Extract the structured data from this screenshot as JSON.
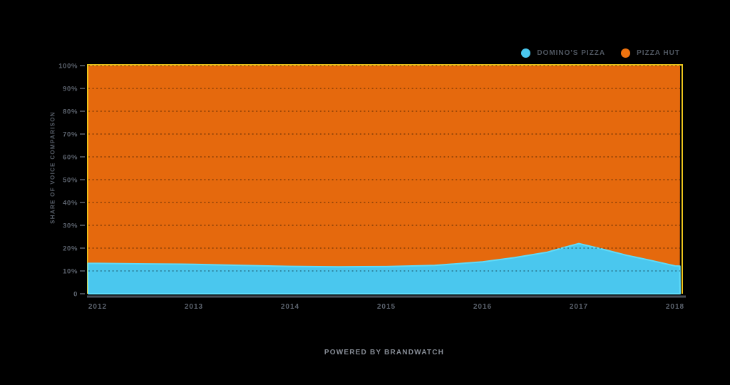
{
  "page": {
    "background_color": "#000000"
  },
  "legend": {
    "position": "top-right",
    "items": [
      {
        "label": "DOMINO'S PIZZA",
        "color": "#4AC7EE"
      },
      {
        "label": "PIZZA HUT",
        "color": "#EE730F"
      }
    ]
  },
  "y_axis": {
    "title": "SHARE OF VOICE COMPARISON",
    "ticks": [
      "100%",
      "90%",
      "80%",
      "70%",
      "60%",
      "50%",
      "40%",
      "30%",
      "20%",
      "10%",
      "0"
    ]
  },
  "x_axis": {
    "ticks": [
      "2012",
      "2013",
      "2014",
      "2015",
      "2016",
      "2017",
      "2018"
    ]
  },
  "footer": {
    "text": "POWERED BY BRANDWATCH"
  },
  "chart_data": {
    "type": "area",
    "stacked": true,
    "unit": "percent",
    "title": "",
    "ylabel": "SHARE OF VOICE COMPARISON",
    "ylim": [
      0,
      100
    ],
    "grid": "dotted horizontal lines every 10%",
    "legend_position": "top-right",
    "x_domain": [
      2011.904,
      2018.052
    ],
    "x_tick_years": [
      2012,
      2013,
      2014,
      2015,
      2016,
      2017,
      2018
    ],
    "x": [
      2011.9,
      2012,
      2012.5,
      2013,
      2013.5,
      2014,
      2014.5,
      2015,
      2015.5,
      2016,
      2016.33,
      2016.67,
      2016.85,
      2017,
      2017.25,
      2017.5,
      2017.75,
      2018,
      2018.05
    ],
    "series": [
      {
        "name": "DOMINO'S PIZZA",
        "color": "#4AC7EE",
        "edge_color": "#5EDCFB",
        "values": [
          13.3,
          13.3,
          13.1,
          12.9,
          12.4,
          12.0,
          11.8,
          11.9,
          12.4,
          14.0,
          15.8,
          18.2,
          20.3,
          22.0,
          19.5,
          16.8,
          14.6,
          12.2,
          12.1
        ]
      },
      {
        "name": "PIZZA HUT",
        "color": "#E5690D",
        "edge_color": "#ECC51C",
        "values": [
          86.7,
          86.7,
          86.9,
          87.1,
          87.6,
          88.0,
          88.2,
          88.1,
          87.6,
          86.0,
          84.2,
          81.8,
          79.7,
          78.0,
          80.5,
          83.2,
          85.4,
          87.8,
          87.9
        ]
      }
    ],
    "yearly_summary": {
      "years": [
        2012,
        2013,
        2014,
        2015,
        2016,
        2017,
        2018
      ],
      "dominos_pizza_pct": [
        13,
        13,
        12,
        12,
        14,
        22,
        12
      ],
      "pizza_hut_pct": [
        87,
        87,
        88,
        88,
        86,
        78,
        88
      ]
    },
    "frame_color": "#ECC51C",
    "grid_color": "rgba(0,0,0,0.42)",
    "axis_line_color": "#474D56",
    "tick_mark_color": "#5C636E"
  }
}
